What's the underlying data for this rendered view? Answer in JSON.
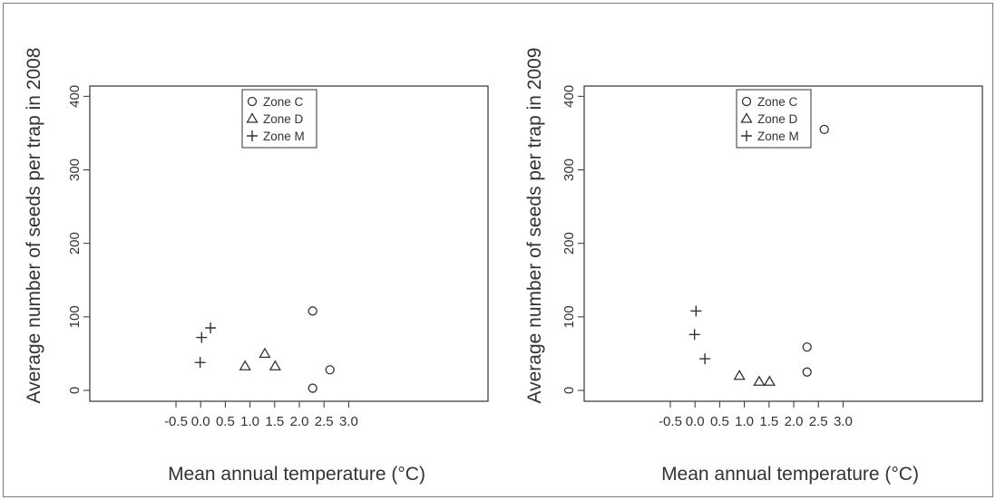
{
  "chart_data": [
    {
      "type": "scatter",
      "title": "",
      "xlabel": "Mean annual temperature (°C)",
      "ylabel": "Average number of seeds per trap in 2008",
      "xlim": [
        -0.5,
        3.0
      ],
      "ylim": [
        0,
        400
      ],
      "x_ticks": [
        -0.5,
        0.0,
        0.5,
        1.0,
        1.5,
        2.0,
        2.5,
        3.0
      ],
      "x_tick_labels": [
        "-0.5",
        "0.0",
        "0.5",
        "1.0",
        "1.5",
        "2.0",
        "2.5",
        "3.0"
      ],
      "y_ticks": [
        0,
        100,
        200,
        300,
        400
      ],
      "y_tick_labels": [
        "0",
        "100",
        "200",
        "300",
        "400"
      ],
      "grid": false,
      "legend_position": "top-center",
      "series": [
        {
          "name": "Zone C",
          "marker": "circle",
          "points": [
            [
              2.27,
              108
            ],
            [
              2.27,
              3
            ],
            [
              2.62,
              28
            ]
          ]
        },
        {
          "name": "Zone D",
          "marker": "triangle",
          "points": [
            [
              0.9,
              33
            ],
            [
              1.3,
              50
            ],
            [
              1.51,
              33
            ]
          ]
        },
        {
          "name": "Zone M",
          "marker": "plus",
          "points": [
            [
              -0.01,
              38
            ],
            [
              0.02,
              72
            ],
            [
              0.2,
              85
            ]
          ]
        }
      ]
    },
    {
      "type": "scatter",
      "title": "",
      "xlabel": "Mean annual temperature (°C)",
      "ylabel": "Average number of seeds per trap in 2009",
      "xlim": [
        -0.5,
        3.0
      ],
      "ylim": [
        0,
        400
      ],
      "x_ticks": [
        -0.5,
        0.0,
        0.5,
        1.0,
        1.5,
        2.0,
        2.5,
        3.0
      ],
      "x_tick_labels": [
        "-0.5",
        "0.0",
        "0.5",
        "1.0",
        "1.5",
        "2.0",
        "2.5",
        "3.0"
      ],
      "y_ticks": [
        0,
        100,
        200,
        300,
        400
      ],
      "y_tick_labels": [
        "0",
        "100",
        "200",
        "300",
        "400"
      ],
      "grid": false,
      "legend_position": "top-center",
      "series": [
        {
          "name": "Zone C",
          "marker": "circle",
          "points": [
            [
              2.62,
              355
            ],
            [
              2.27,
              59
            ],
            [
              2.27,
              25
            ]
          ]
        },
        {
          "name": "Zone D",
          "marker": "triangle",
          "points": [
            [
              0.9,
              20
            ],
            [
              1.3,
              12
            ],
            [
              1.51,
              12
            ]
          ]
        },
        {
          "name": "Zone M",
          "marker": "plus",
          "points": [
            [
              0.02,
              108
            ],
            [
              -0.01,
              76
            ],
            [
              0.2,
              43
            ]
          ]
        }
      ]
    }
  ],
  "colors": {
    "ink": "#333333",
    "frame": "#7a7a7a",
    "background": "#ffffff"
  }
}
